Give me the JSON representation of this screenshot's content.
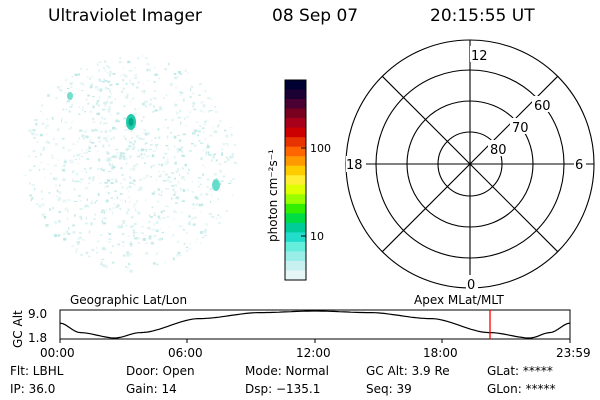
{
  "header": {
    "instrument": "Ultraviolet Imager",
    "date": "08 Sep 07",
    "time": "20:15:55 UT"
  },
  "colorbar": {
    "label": "photon cm⁻²s⁻¹",
    "ticks": [
      "100",
      "10"
    ],
    "colors": [
      "#000033",
      "#1a0033",
      "#4b0033",
      "#7a0020",
      "#a8001a",
      "#cc0000",
      "#e63300",
      "#ff6600",
      "#ff9900",
      "#ffcc00",
      "#ffee33",
      "#ddff00",
      "#99ff00",
      "#33ee00",
      "#00dd44",
      "#00cc99",
      "#22ddcc",
      "#66eedd",
      "#99eee8",
      "#c8f0f0",
      "#e6f6f6"
    ]
  },
  "polar": {
    "mlt_labels": {
      "top": "12",
      "left": "18",
      "right": "6",
      "bottom": "0"
    },
    "lat_labels": [
      "60",
      "70",
      "80"
    ]
  },
  "timeline": {
    "left_label": "Geographic Lat/Lon",
    "right_label": "Apex MLat/MLT",
    "y_label": "GC Alt",
    "y_ticks": [
      "9.0",
      "1.8"
    ],
    "x_ticks": [
      "00:00",
      "06:00",
      "12:00",
      "18:00",
      "23:59"
    ],
    "marker_color": "#ff0000"
  },
  "status": {
    "flt": "Flt: LBHL",
    "door": "Door: Open",
    "mode": "Mode: Normal",
    "gcalt": "GC Alt: 3.9 Re",
    "glat": "GLat: *****",
    "ip": "IP: 36.0",
    "gain": "Gain: 14",
    "dsp": "Dsp: −135.1",
    "seq": "Seq: 39",
    "glon": "GLon: *****"
  }
}
